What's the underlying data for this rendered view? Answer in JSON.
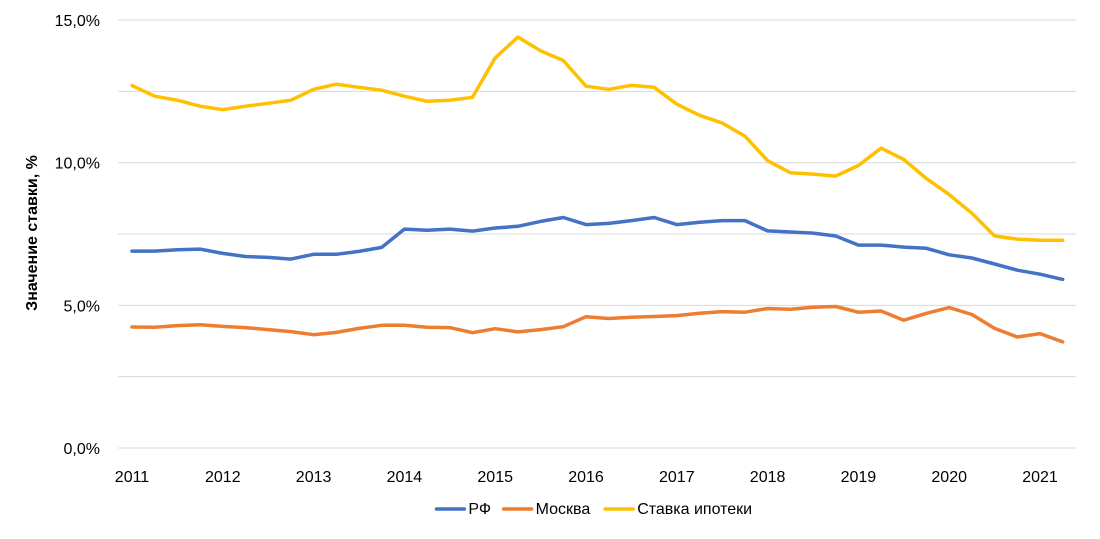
{
  "chart_data": {
    "type": "line",
    "title": "",
    "xlabel": "",
    "ylabel": "Значение ставки, %",
    "ylim": [
      0,
      15
    ],
    "xlim": [
      2011,
      2021.4
    ],
    "grid": true,
    "legend_position": "bottom",
    "y_ticks": [
      {
        "value": 0,
        "label": "0,0%"
      },
      {
        "value": 2.5,
        "label": ""
      },
      {
        "value": 5,
        "label": "5,0%"
      },
      {
        "value": 7.5,
        "label": ""
      },
      {
        "value": 10,
        "label": "10,0%"
      },
      {
        "value": 12.5,
        "label": ""
      },
      {
        "value": 15,
        "label": "15,0%"
      }
    ],
    "x_ticks": [
      {
        "value": 2011,
        "label": "2011"
      },
      {
        "value": 2012,
        "label": "2012"
      },
      {
        "value": 2013,
        "label": "2013"
      },
      {
        "value": 2014,
        "label": "2014"
      },
      {
        "value": 2015,
        "label": "2015"
      },
      {
        "value": 2016,
        "label": "2016"
      },
      {
        "value": 2017,
        "label": "2017"
      },
      {
        "value": 2018,
        "label": "2018"
      },
      {
        "value": 2019,
        "label": "2019"
      },
      {
        "value": 2020,
        "label": "2020"
      },
      {
        "value": 2021,
        "label": "2021"
      }
    ],
    "x": [
      2011.0,
      2011.25,
      2011.5,
      2011.75,
      2012.0,
      2012.25,
      2012.5,
      2012.75,
      2013.0,
      2013.25,
      2013.5,
      2013.75,
      2014.0,
      2014.25,
      2014.5,
      2014.75,
      2015.0,
      2015.25,
      2015.5,
      2015.75,
      2016.0,
      2016.25,
      2016.5,
      2016.75,
      2017.0,
      2017.25,
      2017.5,
      2017.75,
      2018.0,
      2018.25,
      2018.5,
      2018.75,
      2019.0,
      2019.25,
      2019.5,
      2019.75,
      2020.0,
      2020.25,
      2020.5,
      2020.75,
      2021.0,
      2021.25
    ],
    "series": [
      {
        "name": "РФ",
        "color": "#4472C4",
        "values": [
          6.9,
          6.9,
          6.95,
          6.97,
          6.82,
          6.71,
          6.68,
          6.62,
          6.79,
          6.79,
          6.89,
          7.03,
          7.67,
          7.63,
          7.67,
          7.6,
          7.71,
          7.77,
          7.94,
          8.08,
          7.83,
          7.87,
          7.97,
          8.08,
          7.83,
          7.91,
          7.97,
          7.97,
          7.61,
          7.57,
          7.53,
          7.43,
          7.11,
          7.11,
          7.04,
          7.0,
          6.77,
          6.66,
          6.45,
          6.23,
          6.09,
          5.91
        ]
      },
      {
        "name": "Москва",
        "color": "#ED7D31",
        "values": [
          4.24,
          4.23,
          4.29,
          4.32,
          4.26,
          4.22,
          4.15,
          4.08,
          3.97,
          4.05,
          4.19,
          4.3,
          4.3,
          4.23,
          4.22,
          4.04,
          4.18,
          4.07,
          4.15,
          4.25,
          4.6,
          4.54,
          4.58,
          4.61,
          4.64,
          4.72,
          4.78,
          4.76,
          4.89,
          4.86,
          4.93,
          4.96,
          4.76,
          4.8,
          4.48,
          4.72,
          4.92,
          4.68,
          4.19,
          3.89,
          4.01,
          3.72
        ]
      },
      {
        "name": "Ставка ипотеки",
        "color": "#FFC000",
        "values": [
          12.7,
          12.33,
          12.19,
          11.98,
          11.86,
          11.98,
          12.08,
          12.19,
          12.57,
          12.75,
          12.64,
          12.54,
          12.33,
          12.15,
          12.19,
          12.29,
          13.67,
          14.4,
          13.92,
          13.58,
          12.68,
          12.57,
          12.71,
          12.64,
          12.05,
          11.66,
          11.39,
          10.93,
          10.07,
          9.65,
          9.6,
          9.53,
          9.9,
          10.51,
          10.11,
          9.44,
          8.88,
          8.23,
          7.43,
          7.32,
          7.28,
          7.28
        ]
      }
    ]
  }
}
